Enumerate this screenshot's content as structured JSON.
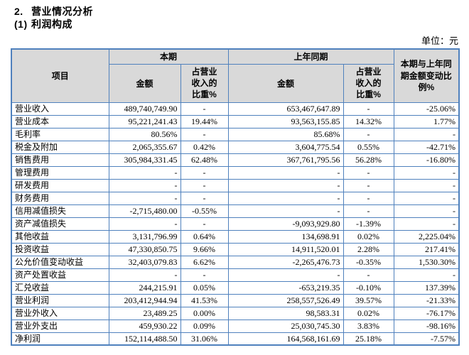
{
  "page": {
    "section_number": "2.",
    "section_title": "营业情况分析",
    "subsection_number": "(1)",
    "subsection_title": "利润构成",
    "unit_label": "单位：元"
  },
  "colors": {
    "table_border": "#4f81bd",
    "header_background": "#d9d9d9",
    "text": "#000000"
  },
  "table": {
    "header": {
      "item": "项目",
      "current_period": "本期",
      "prior_period": "上年同期",
      "amount_current": "金额",
      "ratio_current": "占营业\n收入的\n比重%",
      "amount_prior": "金额",
      "ratio_prior": "占营业\n收入的\n比重%",
      "change": "本期与上年同\n期金额变动比\n例%"
    },
    "rows": [
      {
        "item": "营业收入",
        "cur_amount": "489,740,749.90",
        "cur_ratio": "-",
        "prior_amount": "653,467,647.89",
        "prior_ratio": "-",
        "change": "-25.06%"
      },
      {
        "item": "营业成本",
        "cur_amount": "95,221,241.43",
        "cur_ratio": "19.44%",
        "prior_amount": "93,563,155.85",
        "prior_ratio": "14.32%",
        "change": "1.77%"
      },
      {
        "item": "毛利率",
        "cur_amount": "80.56%",
        "cur_ratio": "-",
        "prior_amount": "85.68%",
        "prior_ratio": "-",
        "change": "-"
      },
      {
        "item": "税金及附加",
        "cur_amount": "2,065,355.67",
        "cur_ratio": "0.42%",
        "prior_amount": "3,604,775.54",
        "prior_ratio": "0.55%",
        "change": "-42.71%"
      },
      {
        "item": "销售费用",
        "cur_amount": "305,984,331.45",
        "cur_ratio": "62.48%",
        "prior_amount": "367,761,795.56",
        "prior_ratio": "56.28%",
        "change": "-16.80%"
      },
      {
        "item": "管理费用",
        "cur_amount": "-",
        "cur_ratio": "-",
        "prior_amount": "-",
        "prior_ratio": "-",
        "change": "-"
      },
      {
        "item": "研发费用",
        "cur_amount": "-",
        "cur_ratio": "-",
        "prior_amount": "-",
        "prior_ratio": "-",
        "change": "-"
      },
      {
        "item": "财务费用",
        "cur_amount": "-",
        "cur_ratio": "-",
        "prior_amount": "-",
        "prior_ratio": "-",
        "change": "-"
      },
      {
        "item": "信用减值损失",
        "cur_amount": "-2,715,480.00",
        "cur_ratio": "-0.55%",
        "prior_amount": "-",
        "prior_ratio": "-",
        "change": "-"
      },
      {
        "item": "资产减值损失",
        "cur_amount": "-",
        "cur_ratio": "-",
        "prior_amount": "-9,093,929.80",
        "prior_ratio": "-1.39%",
        "change": "-"
      },
      {
        "item": "其他收益",
        "cur_amount": "3,131,796.99",
        "cur_ratio": "0.64%",
        "prior_amount": "134,698.91",
        "prior_ratio": "0.02%",
        "change": "2,225.04%"
      },
      {
        "item": "投资收益",
        "cur_amount": "47,330,850.75",
        "cur_ratio": "9.66%",
        "prior_amount": "14,911,520.01",
        "prior_ratio": "2.28%",
        "change": "217.41%"
      },
      {
        "item": "公允价值变动收益",
        "cur_amount": "32,403,079.83",
        "cur_ratio": "6.62%",
        "prior_amount": "-2,265,476.73",
        "prior_ratio": "-0.35%",
        "change": "1,530.30%"
      },
      {
        "item": "资产处置收益",
        "cur_amount": "-",
        "cur_ratio": "-",
        "prior_amount": "-",
        "prior_ratio": "-",
        "change": "-"
      },
      {
        "item": "汇兑收益",
        "cur_amount": "244,215.91",
        "cur_ratio": "0.05%",
        "prior_amount": "-653,219.35",
        "prior_ratio": "-0.10%",
        "change": "137.39%"
      },
      {
        "item": "营业利润",
        "cur_amount": "203,412,944.94",
        "cur_ratio": "41.53%",
        "prior_amount": "258,557,526.49",
        "prior_ratio": "39.57%",
        "change": "-21.33%"
      },
      {
        "item": "营业外收入",
        "cur_amount": "23,489.25",
        "cur_ratio": "0.00%",
        "prior_amount": "98,583.31",
        "prior_ratio": "0.02%",
        "change": "-76.17%"
      },
      {
        "item": "营业外支出",
        "cur_amount": "459,930.22",
        "cur_ratio": "0.09%",
        "prior_amount": "25,030,745.30",
        "prior_ratio": "3.83%",
        "change": "-98.16%"
      },
      {
        "item": "净利润",
        "cur_amount": "152,114,488.50",
        "cur_ratio": "31.06%",
        "prior_amount": "164,568,161.69",
        "prior_ratio": "25.18%",
        "change": "-7.57%"
      }
    ]
  }
}
